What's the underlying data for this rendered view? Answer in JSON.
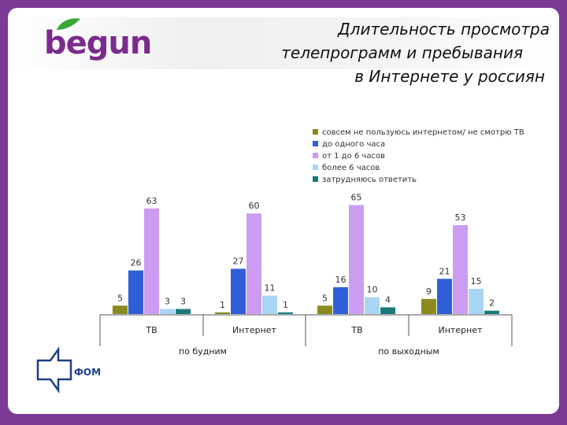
{
  "logo": {
    "text": "begun",
    "leaf_color": "#3aa63a",
    "text_color": "#7b2b8e"
  },
  "title": {
    "line1": "Длительность просмотра",
    "line2": "телепрограмм и пребывания",
    "line3": "в Интернете у россиян"
  },
  "source": {
    "label": "ФОМ"
  },
  "chart_data": {
    "type": "bar",
    "categories": [
      "ТВ",
      "Интернет",
      "ТВ",
      "Интернет"
    ],
    "groups": [
      {
        "label": "по будним",
        "categories": [
          0,
          1
        ]
      },
      {
        "label": "по выходным",
        "categories": [
          2,
          3
        ]
      }
    ],
    "series": [
      {
        "name": "совсем не пользуюсь интернетом/ не смотрю ТВ",
        "color": "#8a8a1e",
        "values": [
          5,
          1,
          5,
          9
        ]
      },
      {
        "name": "до одного часа",
        "color": "#2f5fd8",
        "values": [
          26,
          27,
          16,
          21
        ]
      },
      {
        "name": "от 1 до 6 часов",
        "color": "#cc9cf2",
        "values": [
          63,
          60,
          65,
          53
        ]
      },
      {
        "name": "более 6 часов",
        "color": "#a9d5f5",
        "values": [
          3,
          11,
          10,
          15
        ]
      },
      {
        "name": "затрудняюсь ответить",
        "color": "#1a7a7a",
        "values": [
          3,
          1,
          4,
          2
        ]
      }
    ],
    "ylim": [
      0,
      70
    ],
    "legend": "top-right",
    "grid": false
  }
}
